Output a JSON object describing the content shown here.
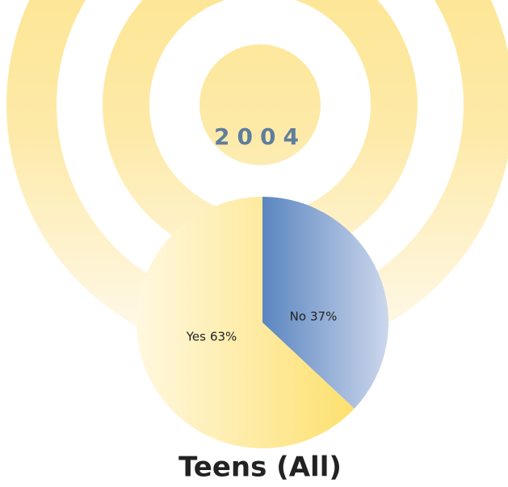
{
  "chart_data": {
    "type": "pie",
    "title": "2004",
    "caption": "Teens (All)",
    "categories": [
      "No",
      "Yes"
    ],
    "values": [
      37,
      63
    ],
    "value_labels": [
      "37%",
      "63%"
    ],
    "colors": [
      "#5b86c0",
      "#fde06e"
    ]
  }
}
